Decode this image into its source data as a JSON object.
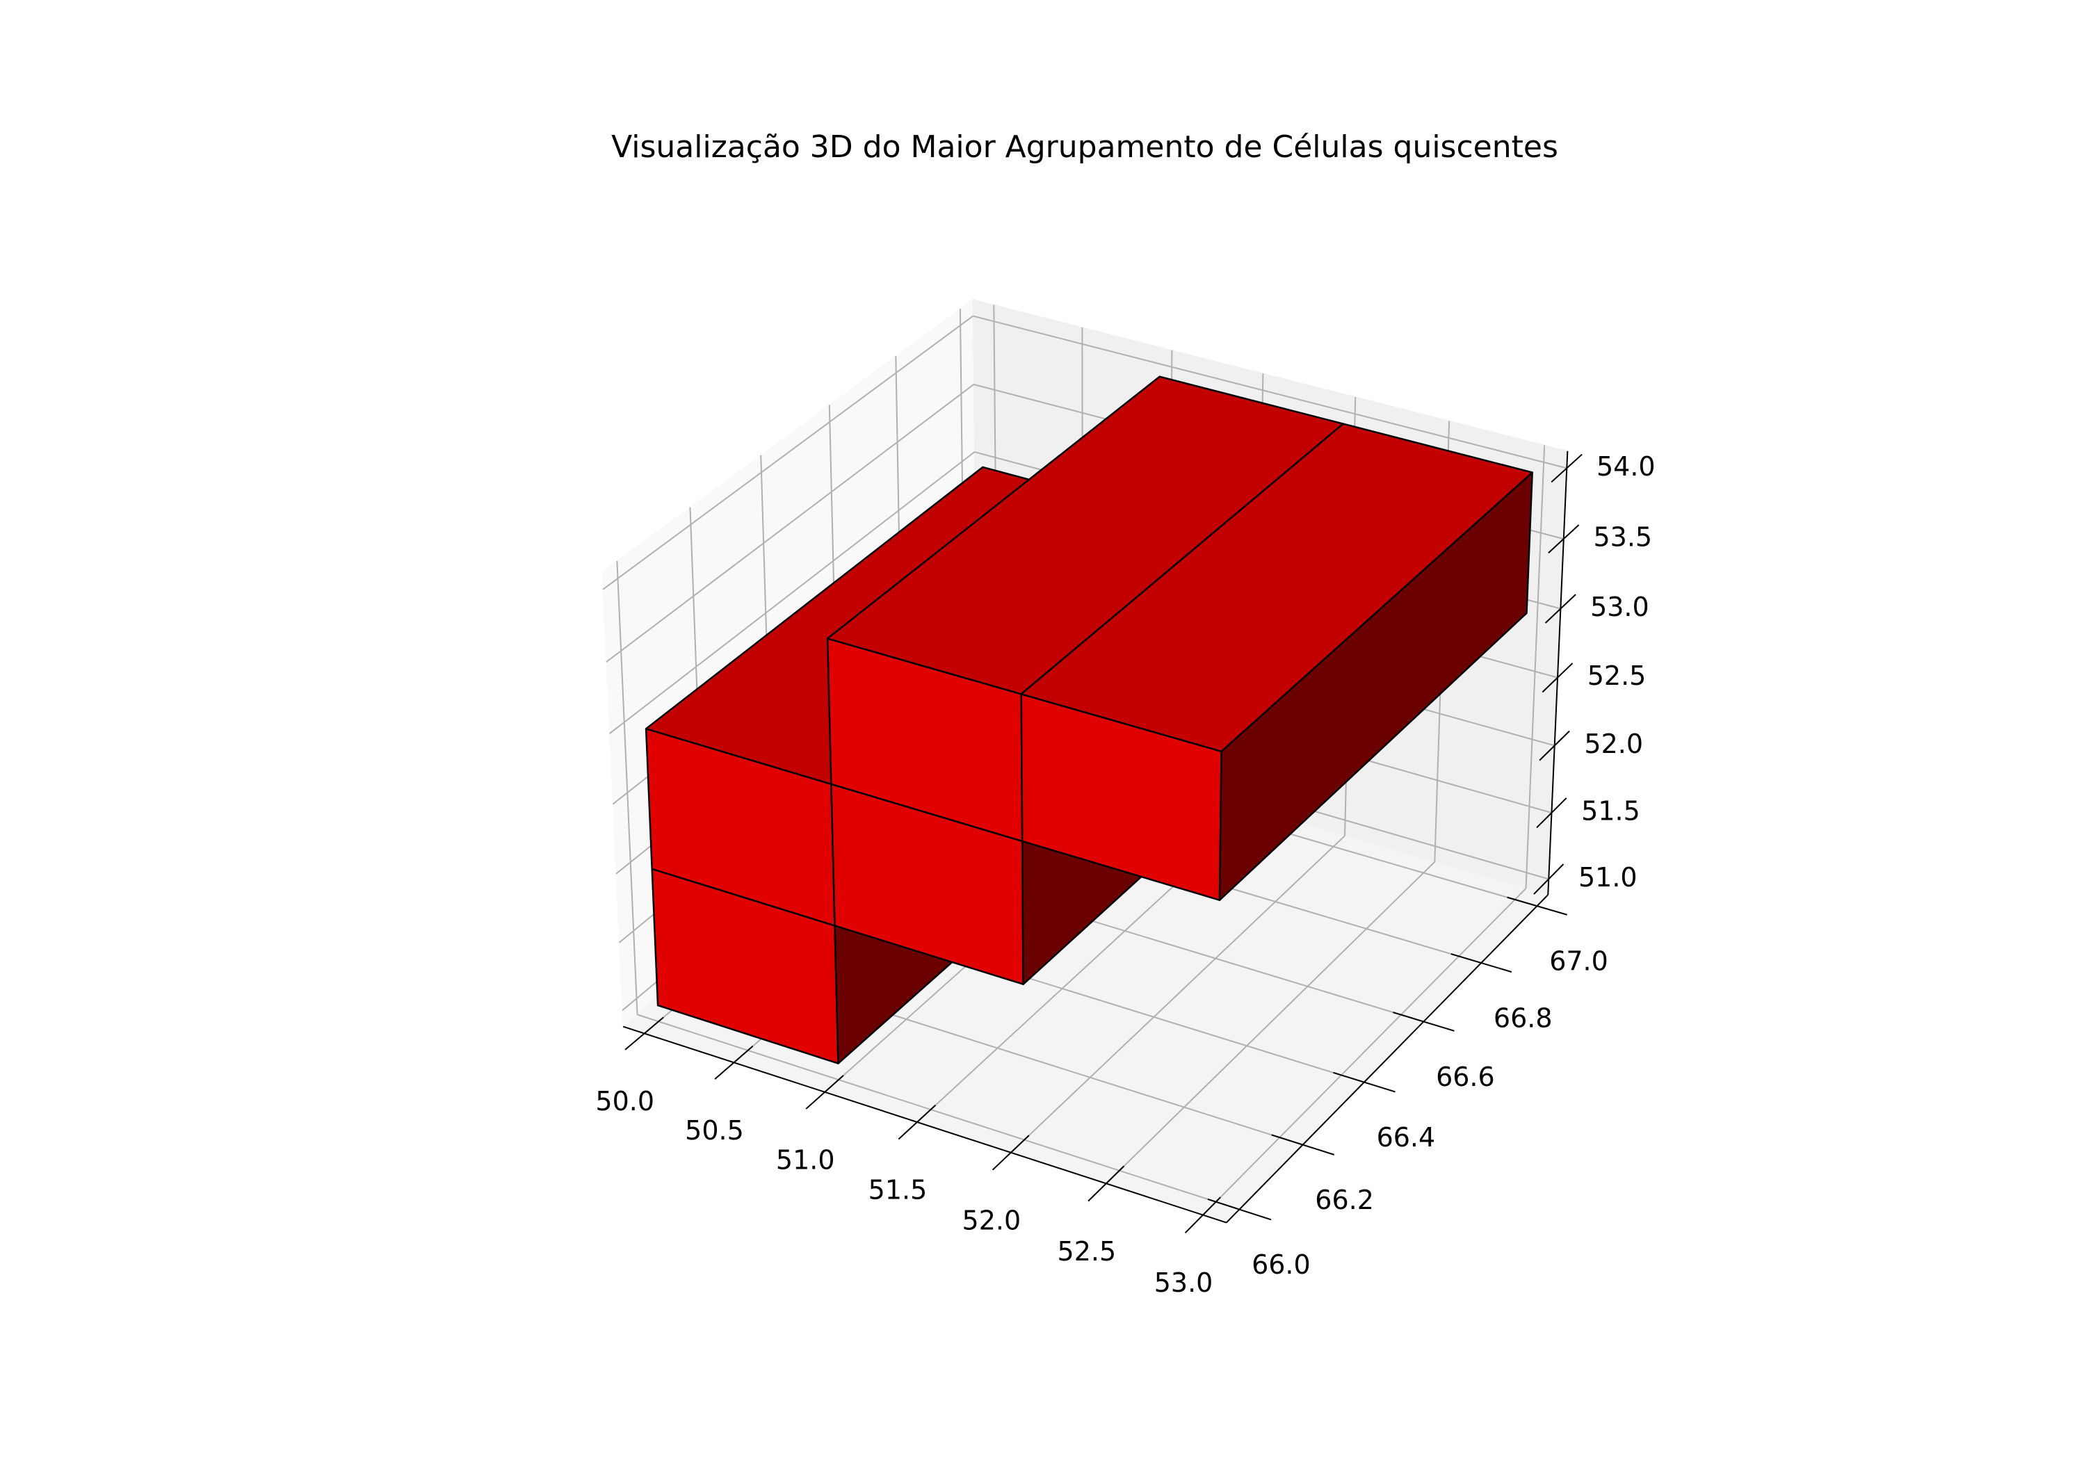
{
  "chart_data": {
    "type": "voxel",
    "title": "Visualização 3D do Maior Agrupamento de Células quiscentes",
    "voxels": [
      {
        "x": 50,
        "y": 66,
        "z": 51
      },
      {
        "x": 50,
        "y": 66,
        "z": 52
      },
      {
        "x": 51,
        "y": 66,
        "z": 52
      },
      {
        "x": 51,
        "y": 66,
        "z": 53
      },
      {
        "x": 52,
        "y": 66,
        "z": 53
      }
    ],
    "color": "#ff0000",
    "xlim": [
      50,
      53
    ],
    "ylim": [
      66,
      67
    ],
    "zlim": [
      51,
      54
    ],
    "xticks": [
      {
        "value": 50,
        "label": "50.0"
      },
      50.5,
      {
        "value": 51,
        "label": "51.0"
      },
      51.5,
      {
        "value": 52,
        "label": "52.0"
      },
      52.5,
      {
        "value": 53,
        "label": "53.0"
      }
    ],
    "yticks": [
      {
        "value": 66,
        "label": "66.0"
      },
      66.2,
      66.4,
      66.6,
      66.8,
      {
        "value": 67,
        "label": "67.0"
      }
    ],
    "zticks": [
      {
        "value": 51,
        "label": "51.0"
      },
      51.5,
      {
        "value": 52,
        "label": "52.0"
      },
      52.5,
      {
        "value": 53,
        "label": "53.0"
      },
      53.5,
      {
        "value": 54,
        "label": "54.0"
      }
    ],
    "elev": 30,
    "azim": -60,
    "grid": true
  }
}
